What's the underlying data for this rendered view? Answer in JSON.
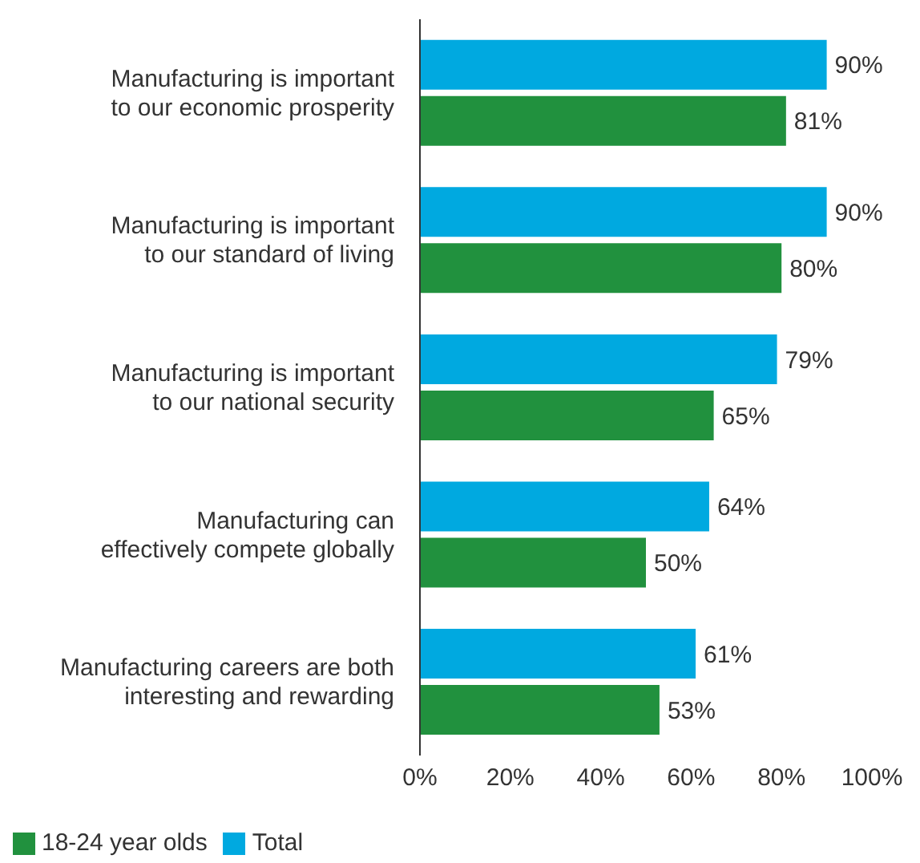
{
  "chart_data": {
    "type": "bar",
    "orientation": "horizontal",
    "categories": [
      "Manufacturing is important to our economic prosperity",
      "Manufacturing is important to our standard of living",
      "Manufacturing is important to our national security",
      "Manufacturing can effectively compete globally",
      "Manufacturing careers are both interesting and rewarding"
    ],
    "series": [
      {
        "name": "Total",
        "color": "#00a9e0",
        "values": [
          90,
          90,
          79,
          64,
          61
        ],
        "value_labels": [
          "90%",
          "90%",
          "79%",
          "64%",
          "61%"
        ]
      },
      {
        "name": "18-24 year olds",
        "color": "#21913e",
        "values": [
          81,
          80,
          65,
          50,
          53
        ],
        "value_labels": [
          "81%",
          "80%",
          "65%",
          "50%",
          "53%"
        ]
      }
    ],
    "xlim": [
      0,
      100
    ],
    "xticks": [
      {
        "value": 0,
        "label": "0%"
      },
      {
        "value": 20,
        "label": "20%"
      },
      {
        "value": 40,
        "label": "40%"
      },
      {
        "value": 60,
        "label": "60%"
      },
      {
        "value": 80,
        "label": "80%"
      },
      {
        "value": 100,
        "label": "100%"
      }
    ],
    "grid": false,
    "legend": "bottom left"
  }
}
